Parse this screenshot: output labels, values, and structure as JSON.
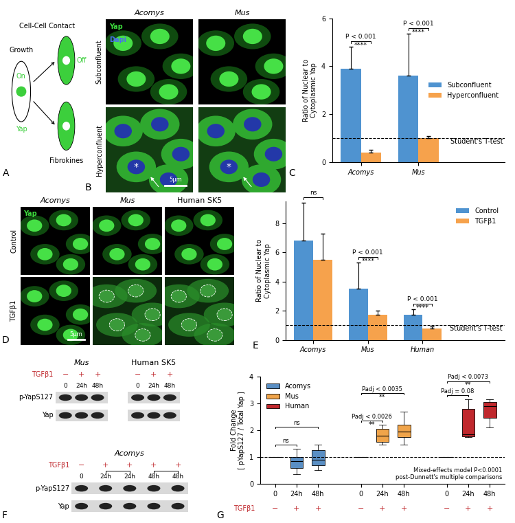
{
  "panel_labels": [
    "A",
    "B",
    "C",
    "D",
    "E",
    "F",
    "G"
  ],
  "diagram": {
    "panel": "A",
    "left_cell": {
      "label": "Growth",
      "state": "On",
      "protein": "Yap"
    },
    "right_cells": [
      {
        "label": "Cell-Cell Contact",
        "state": "Off"
      },
      {
        "label": "Fibrokines"
      }
    ],
    "color": "#3ccf3c"
  },
  "micrographs": [
    {
      "panel": "B",
      "columns": [
        "Acomys",
        "Mus"
      ],
      "rows": [
        "Subconfluent",
        "Hyperconfluent"
      ],
      "channels": [
        {
          "name": "Yap",
          "color": "#3ddc3d"
        },
        {
          "name": "Dapi",
          "color": "#4a6cf0"
        }
      ],
      "scale_bar": "5μm",
      "marker": "*"
    },
    {
      "panel": "D",
      "columns": [
        "Acomys",
        "Mus",
        "Human SK5"
      ],
      "rows": [
        "Control",
        "TGFβ1"
      ],
      "channels": [
        {
          "name": "Yap",
          "color": "#3ddc3d"
        }
      ],
      "scale_bar": "5μm"
    }
  ],
  "blots": {
    "panel": "F",
    "treatment_label": "TGFβ1",
    "treatment_color": "#c0282d",
    "rows": [
      "p-YapS127",
      "Yap"
    ],
    "groups": [
      {
        "title": "Mus",
        "treatment": [
          "−",
          "+",
          "+"
        ],
        "times": [
          "0",
          "24h",
          "48h"
        ]
      },
      {
        "title": "Human SK5",
        "treatment": [
          "−",
          "+",
          "+"
        ],
        "times": [
          "0",
          "24h",
          "48h"
        ]
      },
      {
        "title": "Acomys",
        "treatment": [
          "−",
          "+",
          "+",
          "+",
          "+"
        ],
        "times": [
          "0",
          "24h",
          "24h",
          "48h",
          "48h"
        ],
        "brackets": [
          [
            1,
            2
          ],
          [
            3,
            4
          ]
        ]
      }
    ]
  },
  "chart_data": [
    {
      "panel": "C",
      "type": "bar",
      "categories": [
        "Acomys",
        "Mus"
      ],
      "series": [
        {
          "name": "Subconfluent",
          "color": "#4f93d0",
          "values": [
            3.9,
            3.6
          ],
          "errors": [
            0.9,
            1.75
          ]
        },
        {
          "name": "Hyperconfluent",
          "color": "#f6a24c",
          "values": [
            0.4,
            1.0
          ],
          "errors": [
            0.1,
            0.1
          ]
        }
      ],
      "y_label": "Ratio of Nuclear to\nCytoplasmic Yap",
      "ylim": [
        0,
        6
      ],
      "yticks": [
        0,
        2,
        4,
        6
      ],
      "legend": "center right",
      "reference_line": 1,
      "test_label": "Student's T-test",
      "comparisons": [
        {
          "category": "Acomys",
          "label": "P < 0.001",
          "stars": "****"
        },
        {
          "category": "Mus",
          "label": "P < 0.001",
          "stars": "****"
        }
      ]
    },
    {
      "panel": "E",
      "type": "bar",
      "categories": [
        "Acomys",
        "Mus",
        "Human"
      ],
      "series": [
        {
          "name": "Control",
          "color": "#4f93d0",
          "values": [
            6.8,
            3.5,
            1.75
          ],
          "errors": [
            2.6,
            1.8,
            0.35
          ]
        },
        {
          "name": "TGFβ1",
          "color": "#f6a24c",
          "values": [
            5.5,
            1.75,
            0.8
          ],
          "errors": [
            1.8,
            0.25,
            0.12
          ]
        }
      ],
      "y_label": "Ratio of Nuclear to\nCytoplasmic Yap",
      "ylim": [
        0,
        9.5
      ],
      "yticks": [
        0,
        2,
        4,
        6,
        8
      ],
      "legend": "upper right",
      "reference_line": 1,
      "test_label": "Student's T-test",
      "comparisons": [
        {
          "category": "Acomys",
          "label": "ns"
        },
        {
          "category": "Mus",
          "label": "P < 0.001",
          "stars": "****"
        },
        {
          "category": "Human",
          "label": "P < 0.001",
          "stars": "****"
        }
      ]
    },
    {
      "panel": "G",
      "type": "box",
      "y_label": "Fold Change\n[ pYapS127 / Total Yap ]",
      "ylim": [
        0,
        4
      ],
      "yticks": [
        0,
        1,
        2,
        3,
        4
      ],
      "legend": "upper left",
      "reference_line": 1,
      "treatment_label": "TGFβ1",
      "notes": [
        "Mixed-effects model P<0.0001",
        "post-Dunnett's multiple comparisons"
      ],
      "groups": [
        {
          "name": "Acomys",
          "color": "#5a8fc4",
          "categories": [
            "0",
            "24h",
            "48h"
          ],
          "treatment": [
            "−",
            "+",
            "+"
          ],
          "boxes": [
            {
              "whislo": 1,
              "q1": 1,
              "med": 1,
              "q3": 1,
              "whishi": 1
            },
            {
              "whislo": 0.35,
              "q1": 0.6,
              "med": 0.85,
              "q3": 1.0,
              "whishi": 1.3
            },
            {
              "whislo": 0.5,
              "q1": 0.7,
              "med": 0.9,
              "q3": 1.25,
              "whishi": 1.45
            }
          ],
          "comparisons": [
            {
              "from": 0,
              "to": 1,
              "label": "ns"
            },
            {
              "from": 0,
              "to": 2,
              "label": "ns"
            }
          ]
        },
        {
          "name": "Mus",
          "color": "#f0a44a",
          "categories": [
            "0",
            "24h",
            "48h"
          ],
          "treatment": [
            "−",
            "+",
            "+"
          ],
          "boxes": [
            {
              "whislo": 1,
              "q1": 1,
              "med": 1,
              "q3": 1,
              "whishi": 1
            },
            {
              "whislo": 1.45,
              "q1": 1.55,
              "med": 1.8,
              "q3": 2.05,
              "whishi": 2.2
            },
            {
              "whislo": 1.45,
              "q1": 1.75,
              "med": 1.95,
              "q3": 2.2,
              "whishi": 2.7
            }
          ],
          "comparisons": [
            {
              "from": 0,
              "to": 1,
              "label": "Padj < 0.0026",
              "stars": "**"
            },
            {
              "from": 0,
              "to": 2,
              "label": "Padj < 0.0035",
              "stars": "**"
            }
          ]
        },
        {
          "name": "Human",
          "color": "#c0282d",
          "categories": [
            "0",
            "24h",
            "48h"
          ],
          "treatment": [
            "−",
            "+",
            "+"
          ],
          "boxes": [
            {
              "whislo": 1,
              "q1": 1,
              "med": 1,
              "q3": 1,
              "whishi": 1
            },
            {
              "whislo": 1.75,
              "q1": 1.78,
              "med": 1.85,
              "q3": 2.8,
              "whishi": 3.15
            },
            {
              "whislo": 2.1,
              "q1": 2.45,
              "med": 2.9,
              "q3": 3.05,
              "whishi": 3.15
            }
          ],
          "comparisons": [
            {
              "from": 0,
              "to": 1,
              "label": "Padj = 0.08"
            },
            {
              "from": 0,
              "to": 2,
              "label": "Padj < 0.0073",
              "stars": "**"
            }
          ]
        }
      ]
    }
  ]
}
